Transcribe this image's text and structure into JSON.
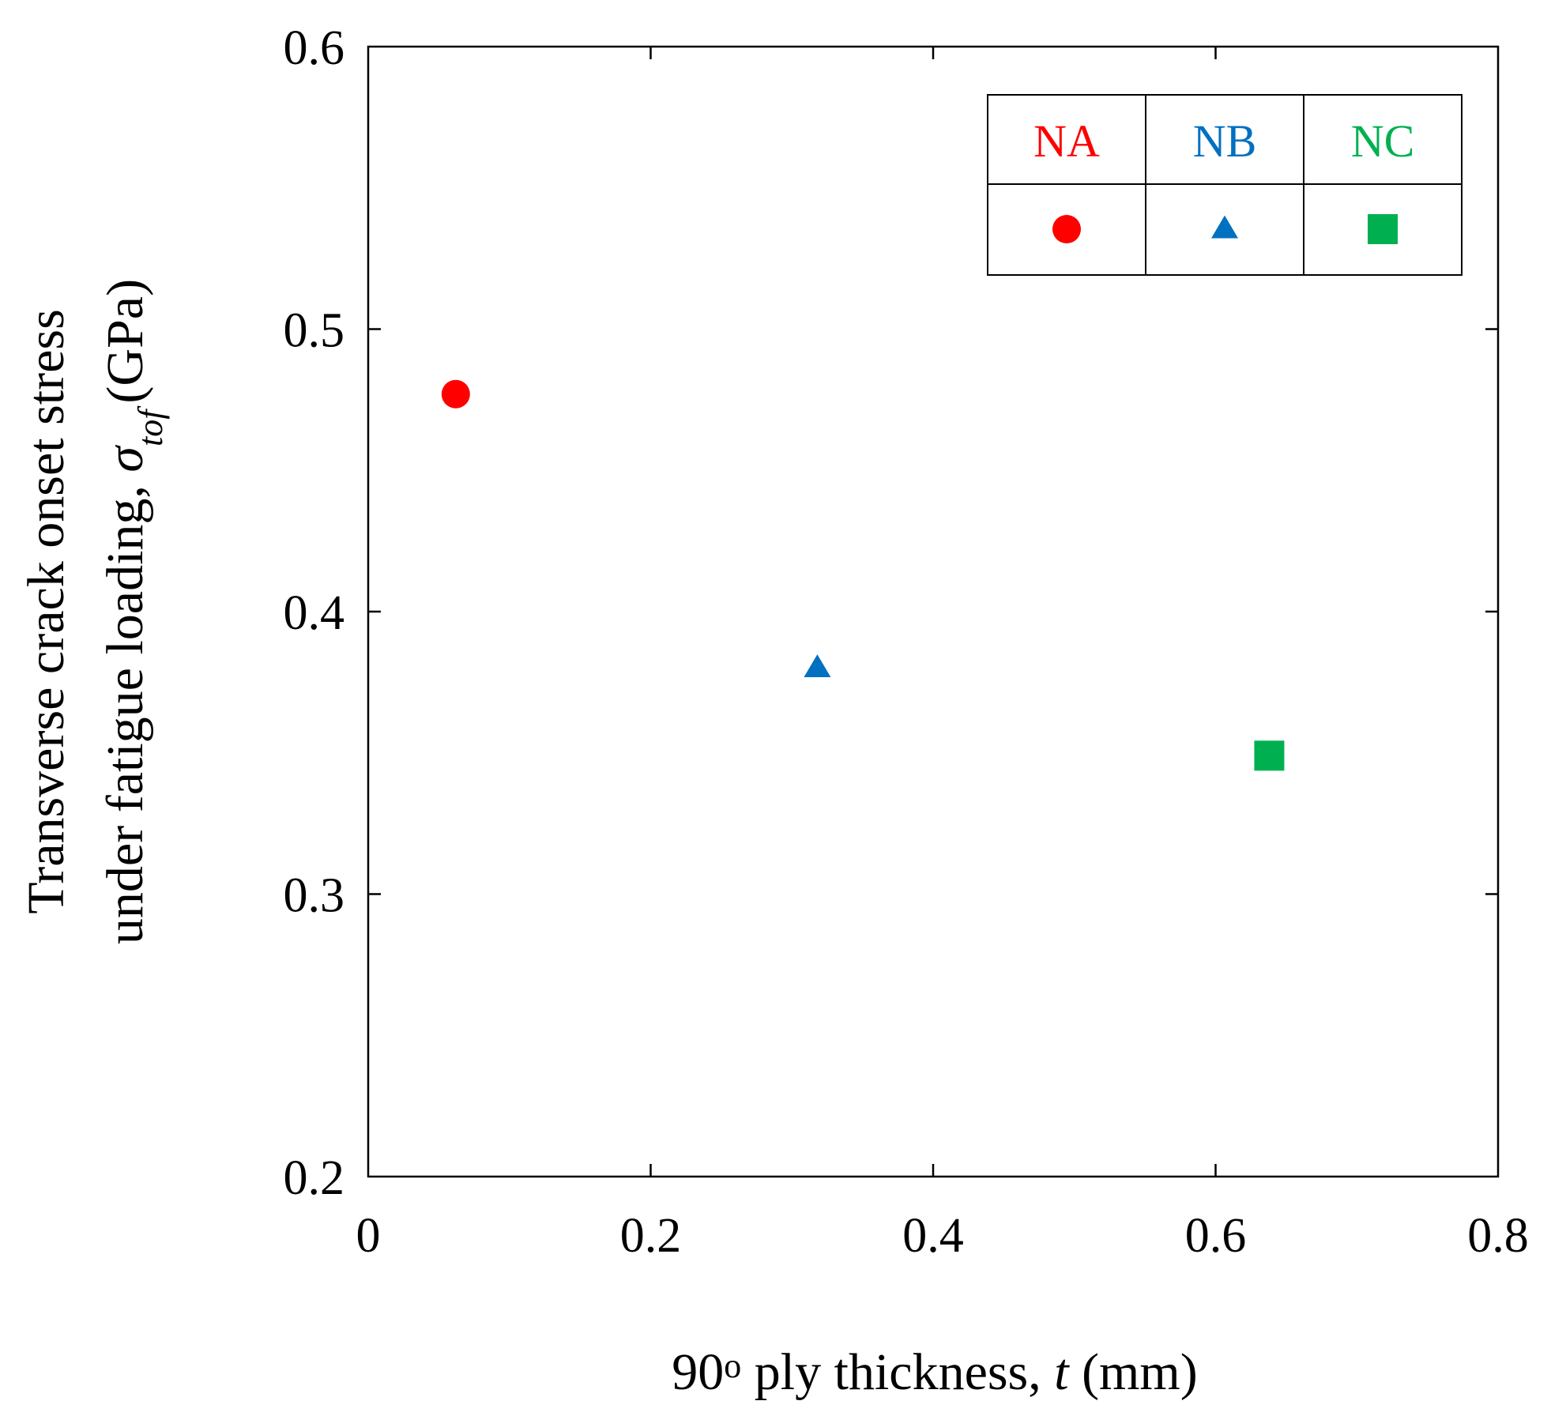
{
  "chart_data": {
    "type": "scatter",
    "title": "",
    "xlabel": {
      "prefix": "90",
      "degree": "o",
      "middle": " ply thickness, ",
      "variable": "t",
      "unit": " (mm)"
    },
    "ylabel": {
      "line1": "Transverse crack onset stress",
      "line2_prefix": "under fatigue loading, ",
      "symbol": "σ",
      "subscript": "tof",
      "unit": "(GPa)"
    },
    "xlim": [
      0,
      0.8
    ],
    "ylim": [
      0.2,
      0.6
    ],
    "xticks": [
      "0",
      "0.2",
      "0.4",
      "0.6",
      "0.8"
    ],
    "yticks": [
      "0.2",
      "0.3",
      "0.4",
      "0.5",
      "0.6"
    ],
    "grid": false,
    "legend_position": "top-right",
    "series": [
      {
        "name": "NA",
        "marker": "circle",
        "color": "#ff0000",
        "x": [
          0.062
        ],
        "y": [
          0.477
        ]
      },
      {
        "name": "NB",
        "marker": "triangle",
        "color": "#0070c0",
        "x": [
          0.318
        ],
        "y": [
          0.38
        ]
      },
      {
        "name": "NC",
        "marker": "square",
        "color": "#00b050",
        "x": [
          0.638
        ],
        "y": [
          0.349
        ]
      }
    ]
  }
}
